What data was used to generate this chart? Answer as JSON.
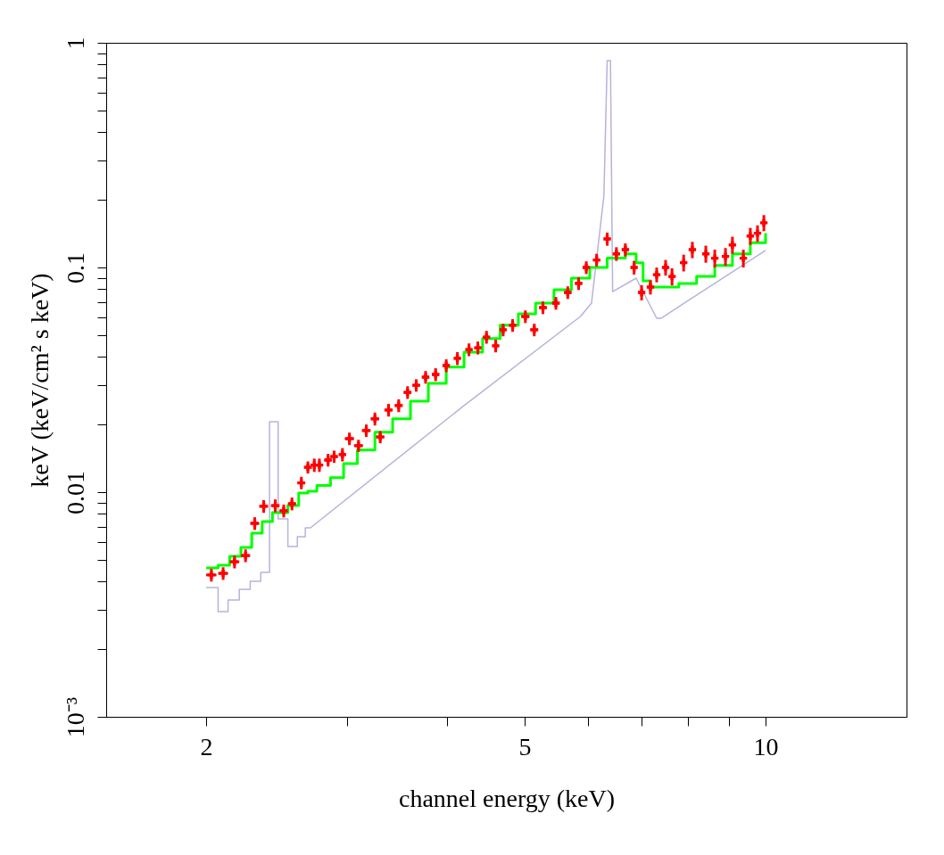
{
  "chart_data": {
    "type": "scatter",
    "xlabel": "channel energy (keV)",
    "ylabel": "keV (keV/cm² s keV)",
    "log": "xy",
    "grid": false,
    "xlim": [
      1.5,
      15
    ],
    "ylim": [
      0.001,
      1
    ],
    "xticks": [
      2,
      {
        "value": 3,
        "label": null
      },
      {
        "value": 4,
        "label": null
      },
      5,
      {
        "value": 6,
        "label": null
      },
      {
        "value": 7,
        "label": null
      },
      {
        "value": 8,
        "label": null
      },
      {
        "value": 9,
        "label": null
      },
      10
    ],
    "yticks": [
      {
        "value": 0.001,
        "label": "10⁻³"
      },
      {
        "value": 0.002,
        "label": null
      },
      {
        "value": 0.003,
        "label": null
      },
      {
        "value": 0.004,
        "label": null
      },
      {
        "value": 0.005,
        "label": null
      },
      {
        "value": 0.006,
        "label": null
      },
      {
        "value": 0.007,
        "label": null
      },
      {
        "value": 0.008,
        "label": null
      },
      {
        "value": 0.009,
        "label": null
      },
      0.01,
      {
        "value": 0.02,
        "label": null
      },
      {
        "value": 0.03,
        "label": null
      },
      {
        "value": 0.04,
        "label": null
      },
      {
        "value": 0.05,
        "label": null
      },
      {
        "value": 0.06,
        "label": null
      },
      {
        "value": 0.07,
        "label": null
      },
      {
        "value": 0.08,
        "label": null
      },
      {
        "value": 0.09,
        "label": null
      },
      0.1,
      {
        "value": 0.2,
        "label": null
      },
      {
        "value": 0.3,
        "label": null
      },
      {
        "value": 0.4,
        "label": null
      },
      {
        "value": 0.5,
        "label": null
      },
      {
        "value": 0.6,
        "label": null
      },
      {
        "value": 0.7,
        "label": null
      },
      {
        "value": 0.8,
        "label": null
      },
      {
        "value": 0.9,
        "label": null
      },
      1
    ],
    "series": [
      {
        "type": "line",
        "color": "#b4b4dc",
        "x": [
          2.0,
          2.07,
          2.07,
          2.13,
          2.13,
          2.2,
          2.2,
          2.27,
          2.27,
          2.34,
          2.34,
          2.4,
          2.4,
          2.46,
          2.46,
          2.53,
          2.53,
          2.6,
          2.6,
          2.66,
          2.66,
          2.7,
          4.2,
          5.87,
          6.06,
          6.28,
          6.34,
          6.4,
          6.44,
          6.89,
          7.31,
          7.4,
          10.0
        ],
        "values": [
          0.00376,
          0.00376,
          0.00294,
          0.00294,
          0.00331,
          0.00331,
          0.00369,
          0.00369,
          0.00401,
          0.00401,
          0.00439,
          0.00439,
          0.0206,
          0.0206,
          0.0076,
          0.0076,
          0.00573,
          0.00573,
          0.00633,
          0.00633,
          0.00694,
          0.00694,
          0.0243,
          0.0605,
          0.0694,
          0.208,
          0.833,
          0.833,
          0.0781,
          0.0896,
          0.0594,
          0.0594,
          0.119
        ]
      },
      {
        "type": "step",
        "color": "#00ff00",
        "x": [
          2.0,
          2.07,
          2.14,
          2.21,
          2.28,
          2.35,
          2.42,
          2.48,
          2.53,
          2.61,
          2.68,
          2.75,
          2.86,
          2.97,
          3.09,
          3.25,
          3.42,
          3.6,
          3.79,
          3.99,
          4.2,
          4.43,
          4.66,
          4.91,
          5.16,
          5.44,
          5.72,
          6.03,
          6.34,
          6.68,
          6.77,
          6.89,
          7.03,
          7.18,
          7.4,
          7.79,
          8.2,
          8.64,
          9.09,
          9.57,
          10.0
        ],
        "values": [
          0.0046,
          0.00473,
          0.00518,
          0.00568,
          0.00657,
          0.00739,
          0.0081,
          0.0081,
          0.00871,
          0.0099,
          0.0101,
          0.0107,
          0.0116,
          0.0134,
          0.0154,
          0.0185,
          0.0212,
          0.0254,
          0.0305,
          0.036,
          0.042,
          0.0482,
          0.0553,
          0.0622,
          0.0694,
          0.0796,
          0.0896,
          0.1,
          0.11,
          0.115,
          0.115,
          0.105,
          0.0872,
          0.0818,
          0.0818,
          0.0849,
          0.0912,
          0.102,
          0.115,
          0.129,
          0.142
        ]
      },
      {
        "color": "#ff0000",
        "marker": "cross",
        "x": [
          2.03,
          2.1,
          2.17,
          2.24,
          2.3,
          2.36,
          2.44,
          2.5,
          2.56,
          2.63,
          2.68,
          2.73,
          2.77,
          2.84,
          2.89,
          2.96,
          3.02,
          3.1,
          3.17,
          3.25,
          3.3,
          3.38,
          3.48,
          3.57,
          3.66,
          3.76,
          3.87,
          3.99,
          4.12,
          4.26,
          4.37,
          4.48,
          4.6,
          4.7,
          4.83,
          5.01,
          5.14,
          5.27,
          5.47,
          5.66,
          5.84,
          5.97,
          6.15,
          6.34,
          6.51,
          6.68,
          6.85,
          7.0,
          7.18,
          7.31,
          7.5,
          7.64,
          7.9,
          8.1,
          8.42,
          8.64,
          8.91,
          9.09,
          9.38,
          9.57,
          9.77,
          9.95
        ],
        "values": [
          0.00428,
          0.00435,
          0.0049,
          0.00522,
          0.00726,
          0.00865,
          0.00871,
          0.00826,
          0.00888,
          0.011,
          0.0129,
          0.0132,
          0.0132,
          0.0139,
          0.0144,
          0.0147,
          0.0173,
          0.0161,
          0.0188,
          0.0212,
          0.0176,
          0.0232,
          0.0243,
          0.0278,
          0.0299,
          0.0325,
          0.0334,
          0.0366,
          0.0394,
          0.0431,
          0.0439,
          0.049,
          0.0448,
          0.0528,
          0.0553,
          0.0605,
          0.0528,
          0.0663,
          0.0694,
          0.0774,
          0.0849,
          0.1,
          0.108,
          0.134,
          0.115,
          0.12,
          0.1,
          0.0774,
          0.0818,
          0.0929,
          0.1,
          0.0912,
          0.105,
          0.12,
          0.115,
          0.11,
          0.112,
          0.126,
          0.11,
          0.138,
          0.142,
          0.158
        ],
        "errors": [
          0.00028,
          0.00028,
          0.00032,
          0.00034,
          0.00047,
          0.00056,
          0.00057,
          0.00054,
          0.00058,
          0.0007,
          0.0008,
          0.0009,
          0.0009,
          0.0009,
          0.0009,
          0.001,
          0.0011,
          0.001,
          0.0012,
          0.0014,
          0.0011,
          0.0015,
          0.0016,
          0.0018,
          0.0019,
          0.0021,
          0.0022,
          0.0024,
          0.0026,
          0.0028,
          0.0029,
          0.0032,
          0.0029,
          0.0034,
          0.0036,
          0.0039,
          0.0034,
          0.0043,
          0.0045,
          0.005,
          0.0055,
          0.0065,
          0.007,
          0.009,
          0.008,
          0.008,
          0.007,
          0.006,
          0.006,
          0.007,
          0.008,
          0.008,
          0.009,
          0.01,
          0.01,
          0.01,
          0.01,
          0.011,
          0.01,
          0.012,
          0.012,
          0.013
        ],
        "xerrors": [
          0.03,
          0.03,
          0.03,
          0.03,
          0.03,
          0.03,
          0.03,
          0.03,
          0.03,
          0.03,
          0.03,
          0.03,
          0.03,
          0.03,
          0.03,
          0.03,
          0.04,
          0.04,
          0.04,
          0.04,
          0.04,
          0.04,
          0.04,
          0.04,
          0.04,
          0.04,
          0.04,
          0.04,
          0.04,
          0.04,
          0.04,
          0.04,
          0.04,
          0.04,
          0.04,
          0.06,
          0.06,
          0.06,
          0.06,
          0.06,
          0.06,
          0.06,
          0.06,
          0.06,
          0.06,
          0.06,
          0.06,
          0.06,
          0.06,
          0.06,
          0.06,
          0.06,
          0.06,
          0.06,
          0.06,
          0.06,
          0.06,
          0.06,
          0.06,
          0.06,
          0.06,
          0.06
        ]
      }
    ]
  }
}
